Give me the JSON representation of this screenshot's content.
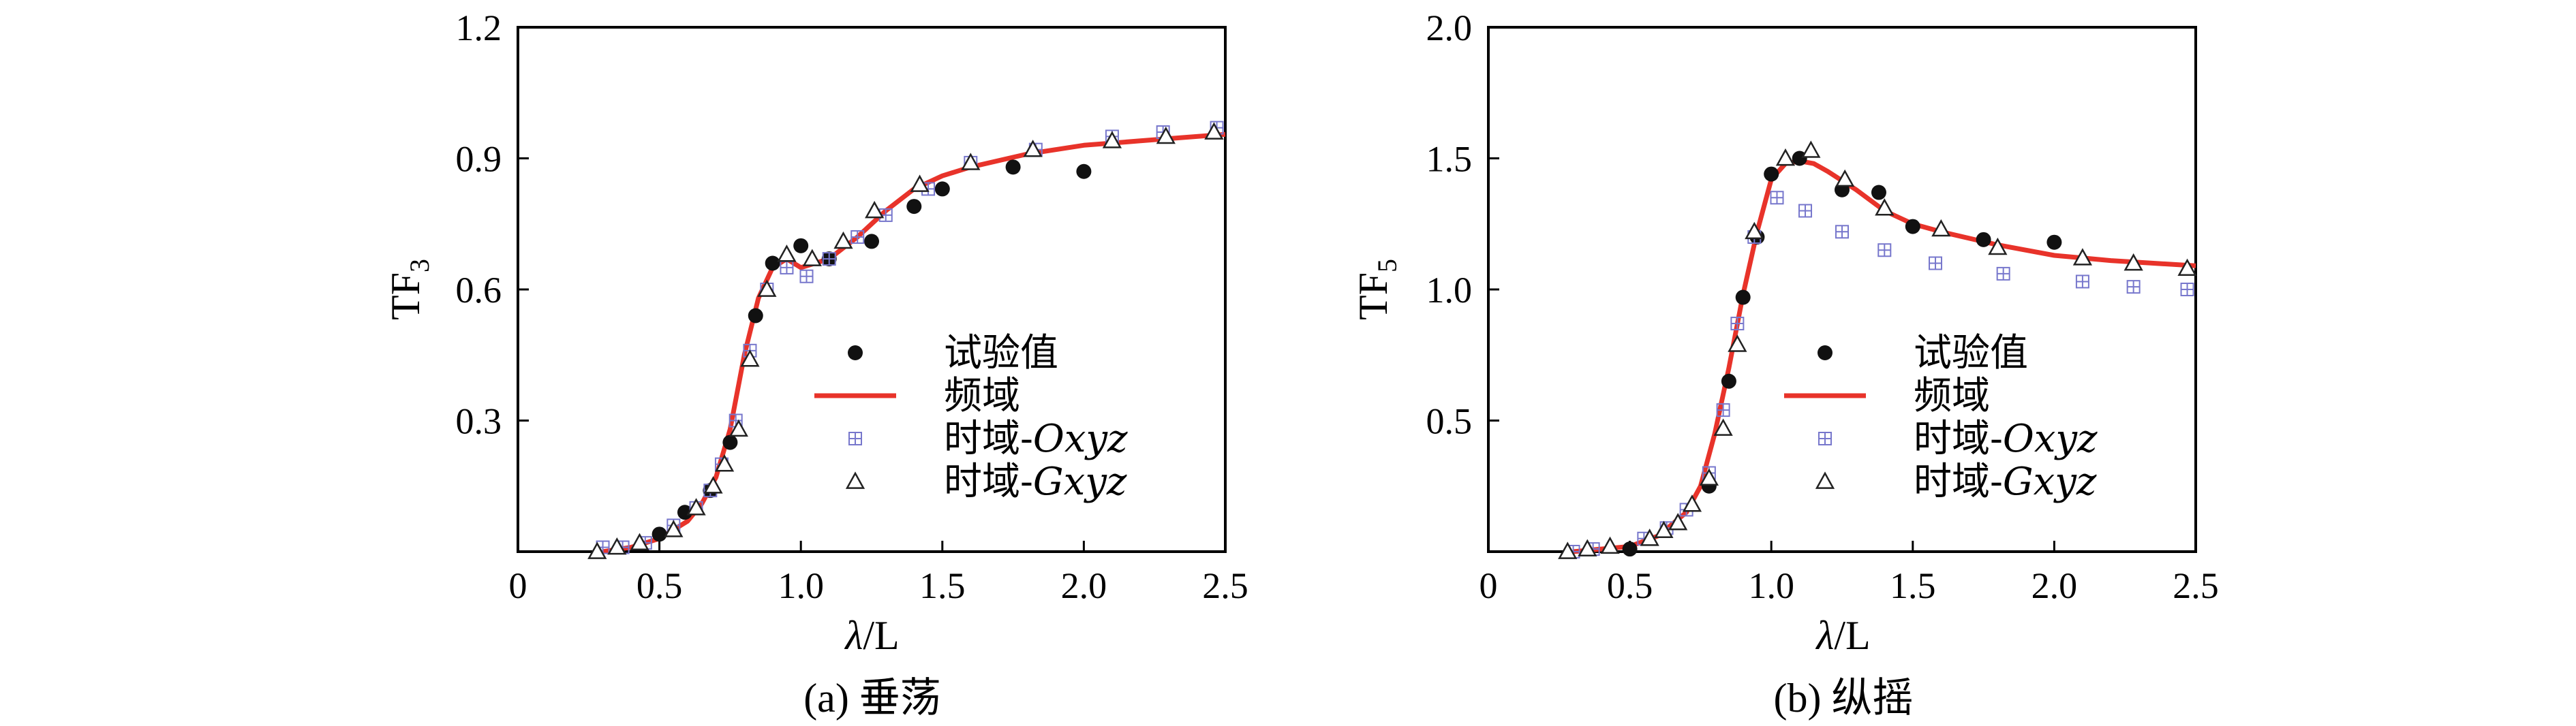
{
  "chart_data": [
    {
      "type": "scatter",
      "caption": "(a) 垂荡",
      "ylabel_main": "TF",
      "ylabel_sub": "3",
      "xlabel_italic": "λ",
      "xlabel_rest": "/L",
      "xlim": [
        0,
        2.5
      ],
      "ylim": [
        0,
        1.2
      ],
      "xticks": [
        0,
        0.5,
        1.0,
        1.5,
        2.0,
        2.5
      ],
      "xtick_labels": [
        "0",
        "0.5",
        "1.0",
        "1.5",
        "2.0",
        "2.5"
      ],
      "yticks": [
        0.3,
        0.6,
        0.9,
        1.2
      ],
      "ytick_labels": [
        "0.3",
        "0.6",
        "0.9",
        "1.2"
      ],
      "legend": [
        "试验值",
        "频域",
        "时域-",
        "时域-"
      ],
      "legend_italic": [
        "",
        "",
        "Oxyz",
        "Gxyz"
      ],
      "series": [
        {
          "name": "试验值",
          "marker": "dot",
          "color": "#111111",
          "points": [
            [
              0.5,
              0.04
            ],
            [
              0.59,
              0.09
            ],
            [
              0.68,
              0.14
            ],
            [
              0.75,
              0.25
            ],
            [
              0.84,
              0.54
            ],
            [
              0.9,
              0.66
            ],
            [
              1.0,
              0.7
            ],
            [
              1.1,
              0.67
            ],
            [
              1.25,
              0.71
            ],
            [
              1.4,
              0.79
            ],
            [
              1.5,
              0.83
            ],
            [
              1.75,
              0.88
            ],
            [
              2.0,
              0.87
            ]
          ]
        },
        {
          "name": "频域",
          "marker": "line",
          "color": "#e8332a",
          "points": [
            [
              0.3,
              0.0
            ],
            [
              0.4,
              0.01
            ],
            [
              0.5,
              0.03
            ],
            [
              0.6,
              0.07
            ],
            [
              0.65,
              0.11
            ],
            [
              0.7,
              0.17
            ],
            [
              0.75,
              0.28
            ],
            [
              0.8,
              0.45
            ],
            [
              0.85,
              0.58
            ],
            [
              0.9,
              0.65
            ],
            [
              0.95,
              0.67
            ],
            [
              1.0,
              0.65
            ],
            [
              1.05,
              0.66
            ],
            [
              1.1,
              0.67
            ],
            [
              1.2,
              0.72
            ],
            [
              1.3,
              0.78
            ],
            [
              1.4,
              0.83
            ],
            [
              1.5,
              0.86
            ],
            [
              1.6,
              0.88
            ],
            [
              1.8,
              0.91
            ],
            [
              2.0,
              0.93
            ],
            [
              2.2,
              0.94
            ],
            [
              2.5,
              0.955
            ]
          ]
        },
        {
          "name": "时域-Oxyz",
          "marker": "square-plus",
          "color": "#7777cc",
          "points": [
            [
              0.3,
              0.01
            ],
            [
              0.37,
              0.01
            ],
            [
              0.45,
              0.02
            ],
            [
              0.55,
              0.06
            ],
            [
              0.63,
              0.1
            ],
            [
              0.68,
              0.14
            ],
            [
              0.72,
              0.2
            ],
            [
              0.77,
              0.3
            ],
            [
              0.82,
              0.46
            ],
            [
              0.88,
              0.6
            ],
            [
              0.95,
              0.65
            ],
            [
              1.02,
              0.63
            ],
            [
              1.1,
              0.67
            ],
            [
              1.2,
              0.72
            ],
            [
              1.3,
              0.77
            ],
            [
              1.45,
              0.83
            ],
            [
              1.6,
              0.89
            ],
            [
              1.83,
              0.92
            ],
            [
              2.1,
              0.95
            ],
            [
              2.28,
              0.96
            ],
            [
              2.47,
              0.97
            ]
          ]
        },
        {
          "name": "时域-Gxyz",
          "marker": "triangle",
          "color": "#222222",
          "points": [
            [
              0.28,
              0.0
            ],
            [
              0.35,
              0.01
            ],
            [
              0.43,
              0.02
            ],
            [
              0.55,
              0.05
            ],
            [
              0.63,
              0.1
            ],
            [
              0.69,
              0.15
            ],
            [
              0.73,
              0.2
            ],
            [
              0.78,
              0.28
            ],
            [
              0.82,
              0.44
            ],
            [
              0.88,
              0.6
            ],
            [
              0.95,
              0.68
            ],
            [
              1.04,
              0.67
            ],
            [
              1.15,
              0.71
            ],
            [
              1.26,
              0.78
            ],
            [
              1.42,
              0.84
            ],
            [
              1.6,
              0.89
            ],
            [
              1.82,
              0.92
            ],
            [
              2.1,
              0.94
            ],
            [
              2.29,
              0.95
            ],
            [
              2.46,
              0.96
            ]
          ]
        }
      ]
    },
    {
      "type": "scatter",
      "caption": "(b) 纵摇",
      "ylabel_main": "TF",
      "ylabel_sub": "5",
      "xlabel_italic": "λ",
      "xlabel_rest": "/L",
      "xlim": [
        0,
        2.5
      ],
      "ylim": [
        0,
        2.0
      ],
      "xticks": [
        0,
        0.5,
        1.0,
        1.5,
        2.0,
        2.5
      ],
      "xtick_labels": [
        "0",
        "0.5",
        "1.0",
        "1.5",
        "2.0",
        "2.5"
      ],
      "yticks": [
        0.5,
        1.0,
        1.5,
        2.0
      ],
      "ytick_labels": [
        "0.5",
        "1.0",
        "1.5",
        "2.0"
      ],
      "legend": [
        "试验值",
        "频域",
        "时域-",
        "时域-"
      ],
      "legend_italic": [
        "",
        "",
        "Oxyz",
        "Gxyz"
      ],
      "series": [
        {
          "name": "试验值",
          "marker": "dot",
          "color": "#111111",
          "points": [
            [
              0.5,
              0.01
            ],
            [
              0.78,
              0.25
            ],
            [
              0.85,
              0.65
            ],
            [
              0.9,
              0.97
            ],
            [
              0.95,
              1.2
            ],
            [
              1.0,
              1.44
            ],
            [
              1.1,
              1.5
            ],
            [
              1.25,
              1.38
            ],
            [
              1.38,
              1.37
            ],
            [
              1.5,
              1.24
            ],
            [
              1.75,
              1.19
            ],
            [
              2.0,
              1.18
            ]
          ]
        },
        {
          "name": "频域",
          "marker": "line",
          "color": "#e8332a",
          "points": [
            [
              0.3,
              0.0
            ],
            [
              0.4,
              0.01
            ],
            [
              0.5,
              0.02
            ],
            [
              0.6,
              0.06
            ],
            [
              0.7,
              0.15
            ],
            [
              0.75,
              0.25
            ],
            [
              0.8,
              0.45
            ],
            [
              0.85,
              0.7
            ],
            [
              0.9,
              0.98
            ],
            [
              0.95,
              1.22
            ],
            [
              1.0,
              1.42
            ],
            [
              1.05,
              1.48
            ],
            [
              1.1,
              1.49
            ],
            [
              1.15,
              1.48
            ],
            [
              1.2,
              1.45
            ],
            [
              1.3,
              1.38
            ],
            [
              1.4,
              1.3
            ],
            [
              1.5,
              1.25
            ],
            [
              1.6,
              1.22
            ],
            [
              1.8,
              1.17
            ],
            [
              2.0,
              1.13
            ],
            [
              2.2,
              1.11
            ],
            [
              2.5,
              1.09
            ]
          ]
        },
        {
          "name": "时域-Oxyz",
          "marker": "square-plus",
          "color": "#7777cc",
          "points": [
            [
              0.3,
              0.0
            ],
            [
              0.37,
              0.01
            ],
            [
              0.55,
              0.05
            ],
            [
              0.63,
              0.09
            ],
            [
              0.7,
              0.16
            ],
            [
              0.78,
              0.3
            ],
            [
              0.83,
              0.54
            ],
            [
              0.88,
              0.87
            ],
            [
              0.94,
              1.2
            ],
            [
              1.02,
              1.35
            ],
            [
              1.12,
              1.3
            ],
            [
              1.25,
              1.22
            ],
            [
              1.4,
              1.15
            ],
            [
              1.58,
              1.1
            ],
            [
              1.82,
              1.06
            ],
            [
              2.1,
              1.03
            ],
            [
              2.28,
              1.01
            ],
            [
              2.47,
              1.0
            ]
          ]
        },
        {
          "name": "时域-Gxyz",
          "marker": "triangle",
          "color": "#222222",
          "points": [
            [
              0.28,
              0.0
            ],
            [
              0.35,
              0.01
            ],
            [
              0.43,
              0.02
            ],
            [
              0.57,
              0.05
            ],
            [
              0.62,
              0.08
            ],
            [
              0.67,
              0.11
            ],
            [
              0.72,
              0.18
            ],
            [
              0.78,
              0.28
            ],
            [
              0.83,
              0.47
            ],
            [
              0.88,
              0.79
            ],
            [
              0.94,
              1.22
            ],
            [
              1.05,
              1.5
            ],
            [
              1.14,
              1.53
            ],
            [
              1.26,
              1.42
            ],
            [
              1.4,
              1.31
            ],
            [
              1.6,
              1.23
            ],
            [
              1.8,
              1.16
            ],
            [
              2.1,
              1.12
            ],
            [
              2.28,
              1.1
            ],
            [
              2.47,
              1.08
            ]
          ]
        }
      ]
    }
  ]
}
